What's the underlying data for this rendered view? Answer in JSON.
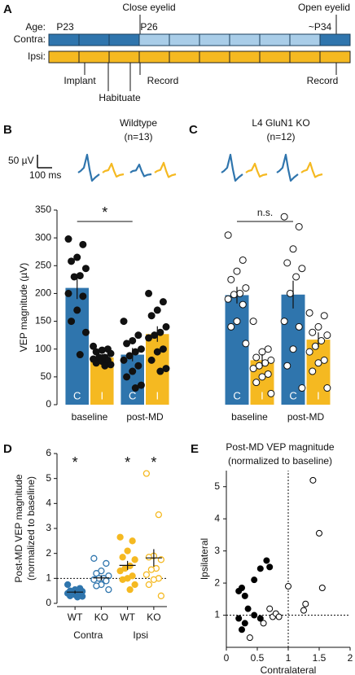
{
  "panel_labels": {
    "a": "A",
    "b": "B",
    "c": "C",
    "d": "D",
    "e": "E"
  },
  "panel_a": {
    "age_label": "Age:",
    "ages": [
      "P23",
      "P26",
      "~P34"
    ],
    "events_top": [
      "Close eyelid",
      "Open eyelid"
    ],
    "rows": [
      "Contra:",
      "Ipsi:"
    ],
    "events_bottom": [
      "Implant",
      "Habituate",
      "Record",
      "Record"
    ]
  },
  "traces": {
    "scale_y": "50 µV",
    "scale_x": "100 ms"
  },
  "chart_data": [
    {
      "type": "bar",
      "title": "Wildtype",
      "subtitle": "(n=13)",
      "ylabel": "VEP magnitude (µV)",
      "categories": [
        "baseline",
        "post-MD"
      ],
      "ylim": [
        0,
        350
      ],
      "yticks": [
        0,
        50,
        100,
        150,
        200,
        250,
        300,
        350
      ],
      "significance": "*",
      "point_style": "filled",
      "series": [
        {
          "name": "C",
          "color": "#2f75ad",
          "values": [
            210,
            90
          ],
          "errors": [
            20,
            12
          ],
          "points": [
            [
              298,
              288,
              265,
              258,
              245,
              232,
              230,
              200,
              195,
              170,
              150,
              130,
              90
            ],
            [
              150,
              125,
              115,
              110,
              100,
              95,
              88,
              80,
              70,
              60,
              50,
              35,
              30
            ]
          ]
        },
        {
          "name": "I",
          "color": "#f5b921",
          "values": [
            85,
            127
          ],
          "errors": [
            6,
            14
          ],
          "points": [
            [
              105,
              100,
              98,
              95,
              92,
              85,
              85,
              82,
              80,
              78,
              75,
              72,
              70
            ],
            [
              200,
              185,
              170,
              160,
              140,
              130,
              125,
              120,
              100,
              95,
              80,
              65,
              60
            ]
          ]
        }
      ]
    },
    {
      "type": "bar",
      "title": "L4 GluN1 KO",
      "subtitle": "(n=12)",
      "categories": [
        "baseline",
        "post-MD"
      ],
      "ylim": [
        0,
        350
      ],
      "significance": "n.s.",
      "point_style": "open",
      "series": [
        {
          "name": "C",
          "color": "#2f75ad",
          "values": [
            197,
            198
          ],
          "errors": [
            15,
            25
          ],
          "points": [
            [
              305,
              260,
              240,
              225,
              210,
              200,
              198,
              190,
              180,
              150,
              140,
              110
            ],
            [
              338,
              320,
              280,
              255,
              245,
              230,
              200,
              150,
              140,
              100,
              70,
              30
            ]
          ]
        },
        {
          "name": "I",
          "color": "#f5b921",
          "values": [
            80,
            117
          ],
          "errors": [
            11,
            13
          ],
          "points": [
            [
              150,
              100,
              95,
              85,
              80,
              75,
              70,
              65,
              55,
              50,
              40,
              20
            ],
            [
              165,
              160,
              140,
              130,
              125,
              115,
              105,
              95,
              80,
              75,
              60,
              30
            ]
          ]
        }
      ]
    },
    {
      "type": "dot",
      "ylabel": [
        "Post-MD VEP magnitude",
        "(normalized to baseline)"
      ],
      "categories": [
        "WT",
        "KO",
        "WT",
        "KO"
      ],
      "groups": [
        "Contra",
        "Ipsi"
      ],
      "ylim": [
        0,
        6
      ],
      "yticks": [
        0,
        1,
        2,
        3,
        4,
        5,
        6
      ],
      "reference_line": 1,
      "colors": [
        "#2f75ad",
        "#2f75ad",
        "#f5b921",
        "#f5b921"
      ],
      "filled": [
        true,
        false,
        true,
        false
      ],
      "significance": [
        "*",
        null,
        "*",
        "*"
      ],
      "values": [
        0.45,
        1.02,
        1.52,
        1.82
      ],
      "errors": [
        0.06,
        0.1,
        0.18,
        0.35
      ],
      "points": [
        [
          0.75,
          0.6,
          0.55,
          0.5,
          0.48,
          0.45,
          0.42,
          0.4,
          0.38,
          0.35,
          0.3,
          0.28,
          0.25
        ],
        [
          1.8,
          1.6,
          1.3,
          1.2,
          1.1,
          1.0,
          1.0,
          0.95,
          0.9,
          0.75,
          0.7,
          0.55
        ],
        [
          2.65,
          2.5,
          2.1,
          1.85,
          1.75,
          1.5,
          1.4,
          1.3,
          1.1,
          1.0,
          0.95,
          0.75,
          0.55
        ],
        [
          5.2,
          3.55,
          1.9,
          1.85,
          1.75,
          1.4,
          1.35,
          1.15,
          1.0,
          0.95,
          0.75,
          0.3
        ]
      ]
    },
    {
      "type": "scatter",
      "title": [
        "Post-MD VEP magnitude",
        "(normalized to baseline)"
      ],
      "xlabel": "Contralateral",
      "ylabel": "Ipsilateral",
      "xlim": [
        0,
        2
      ],
      "ylim": [
        0,
        5.5
      ],
      "xticks": [
        0,
        0.5,
        1,
        1.5,
        2
      ],
      "yticks": [
        1,
        2,
        3,
        4,
        5
      ],
      "xref": 1,
      "yref": 1,
      "series": [
        {
          "color": "#000000",
          "filled": true,
          "x": [
            0.2,
            0.25,
            0.3,
            0.2,
            0.25,
            0.3,
            0.35,
            0.45,
            0.55,
            0.45,
            0.55,
            0.65,
            0.7
          ],
          "y": [
            1.75,
            1.85,
            1.6,
            0.9,
            0.55,
            0.75,
            1.2,
            1.0,
            0.9,
            2.1,
            2.45,
            2.7,
            2.5
          ]
        },
        {
          "color": "#000000",
          "filled": false,
          "x": [
            0.38,
            0.6,
            0.7,
            0.75,
            0.8,
            0.85,
            1.0,
            1.25,
            1.28,
            1.4,
            1.5,
            1.55
          ],
          "y": [
            0.3,
            0.75,
            1.2,
            0.95,
            1.05,
            0.95,
            1.9,
            1.15,
            1.35,
            5.2,
            3.55,
            1.85
          ]
        }
      ]
    }
  ]
}
